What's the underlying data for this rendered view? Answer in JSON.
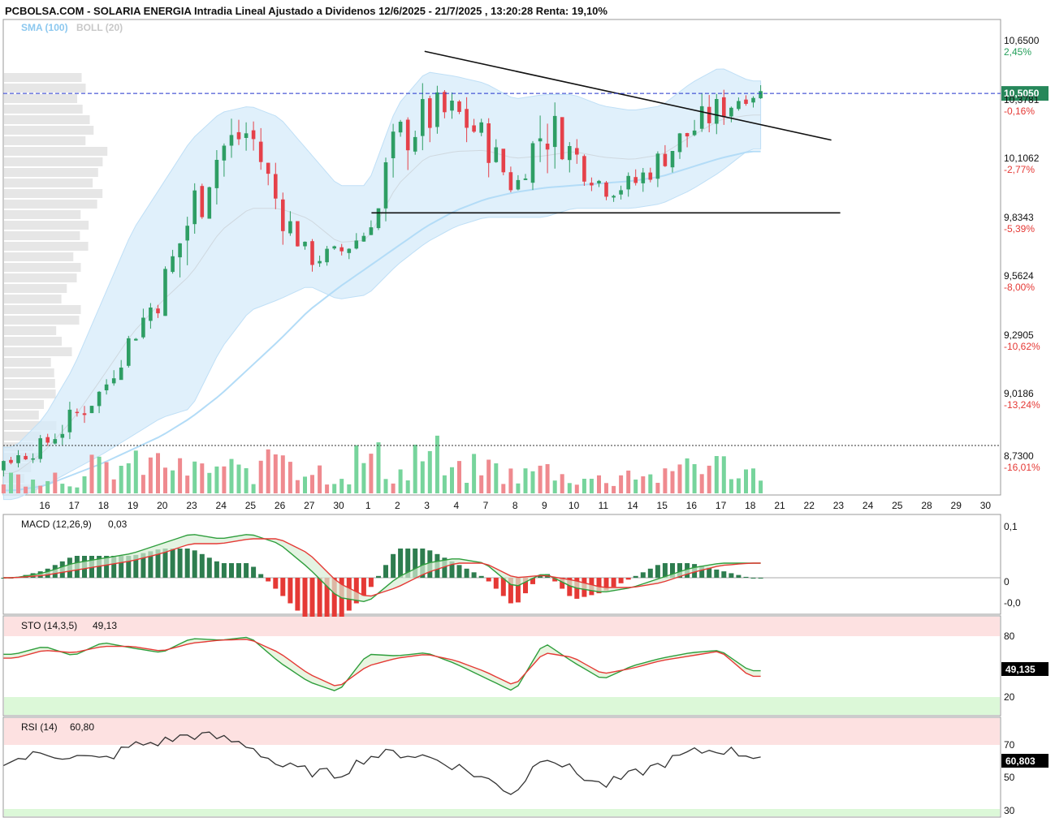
{
  "header": {
    "title": "PCBOLSA.COM - SOLARIA ENERGIA Intradia Lineal Ajustado a Dividenos 12/6/2025 - 21/7/2025 , 13:20:28 Renta: 19,10%",
    "overlay_sma": "SMA (100)",
    "overlay_boll": "BOLL (20)"
  },
  "colors": {
    "up": "#2e9e64",
    "down": "#e5414a",
    "up_volume": "#77d49c",
    "down_volume": "#ef8a8f",
    "boll_fill": "#d6ebfa",
    "sma": "#b3dcf7",
    "last_line": "#2233cc",
    "badge_green": "#26875a",
    "pct_green": "#26a05b",
    "pct_red": "#e53935",
    "macd_line": "#2e9e3c",
    "signal_line": "#e53935",
    "rsi_line": "#333333",
    "overbought_zone": "#fde1e1",
    "oversold_zone": "#dcf8d8",
    "profile_bars": "#e6e6e6"
  },
  "chart_data": [
    {
      "type": "candlestick",
      "title": "PCBOLSA.COM - SOLARIA ENERGIA Intradia Lineal Ajustado a Dividenos 12/6/2025 - 21/7/2025 , 13:20:28 Renta: 19,10%",
      "x_tick_labels": [
        "16",
        "17",
        "18",
        "19",
        "20",
        "23",
        "24",
        "25",
        "26",
        "27",
        "30",
        "1",
        "2",
        "3",
        "4",
        "7",
        "8",
        "9",
        "10",
        "11",
        "14",
        "15",
        "16",
        "17",
        "18",
        "21",
        "22",
        "23",
        "24",
        "25",
        "28",
        "29",
        "30"
      ],
      "price_ticks": [
        {
          "value": "10,6500",
          "pct": "2,45%",
          "trend": "up"
        },
        {
          "value": "10,3781",
          "pct": "-0,16%",
          "trend": "down"
        },
        {
          "value": "10,1062",
          "pct": "-2,77%",
          "trend": "down"
        },
        {
          "value": "9,8343",
          "pct": "-5,39%",
          "trend": "down"
        },
        {
          "value": "9,5624",
          "pct": "-8,00%",
          "trend": "down"
        },
        {
          "value": "9,2905",
          "pct": "-10,62%",
          "trend": "down"
        },
        {
          "value": "9,0186",
          "pct": "-13,24%",
          "trend": "down"
        },
        {
          "value": "8,7300",
          "pct": "-16,01%",
          "trend": "down"
        }
      ],
      "last_price": "10,5050",
      "last_value": 10.505,
      "ylim": [
        8.74,
        10.83
      ],
      "daily_close": [
        8.9,
        8.96,
        9.08,
        9.2,
        9.44,
        9.64,
        9.98,
        10.26,
        10.34,
        10.0,
        9.78,
        9.8,
        9.9,
        10.3,
        10.4,
        10.42,
        10.3,
        10.08,
        10.36,
        10.24,
        10.1,
        10.1,
        10.22,
        10.34,
        10.44,
        10.505
      ],
      "daily_high": [
        8.98,
        9.06,
        9.22,
        9.32,
        9.56,
        9.84,
        10.2,
        10.42,
        10.44,
        10.2,
        9.92,
        9.9,
        10.0,
        10.4,
        10.69,
        10.58,
        10.42,
        10.2,
        10.58,
        10.36,
        10.24,
        10.24,
        10.34,
        10.54,
        10.62,
        10.55
      ],
      "daily_low": [
        8.82,
        8.88,
        8.96,
        9.1,
        9.3,
        9.45,
        9.55,
        9.98,
        10.1,
        9.84,
        9.7,
        9.7,
        9.8,
        9.9,
        10.2,
        10.2,
        10.06,
        9.96,
        10.0,
        10.04,
        9.98,
        10.0,
        10.06,
        10.2,
        10.3,
        10.38
      ],
      "sma100": [
        8.76,
        8.78,
        8.83,
        8.88,
        8.94,
        9.0,
        9.08,
        9.18,
        9.3,
        9.42,
        9.55,
        9.65,
        9.74,
        9.83,
        9.92,
        9.99,
        10.04,
        10.07,
        10.09,
        10.1,
        10.11,
        10.12,
        10.14,
        10.18,
        10.22,
        10.25
      ],
      "boll_upper": [
        8.95,
        9.08,
        9.3,
        9.6,
        9.9,
        10.1,
        10.3,
        10.42,
        10.45,
        10.4,
        10.25,
        10.1,
        10.1,
        10.45,
        10.6,
        10.58,
        10.55,
        10.48,
        10.5,
        10.5,
        10.45,
        10.43,
        10.45,
        10.55,
        10.62,
        10.56
      ],
      "boll_lower": [
        8.72,
        8.78,
        8.85,
        8.92,
        9.0,
        9.08,
        9.12,
        9.38,
        9.55,
        9.6,
        9.66,
        9.6,
        9.62,
        9.75,
        9.85,
        9.92,
        9.96,
        9.96,
        9.96,
        10.0,
        10.0,
        10.0,
        10.02,
        10.08,
        10.16,
        10.26
      ],
      "trendlines": [
        {
          "from": {
            "x": "4",
            "y": 10.69
          },
          "to": {
            "x": "24",
            "y": 10.3
          }
        },
        {
          "from": {
            "x": "2",
            "y": 9.98
          },
          "to": {
            "x": "24",
            "y": 9.98
          }
        }
      ]
    },
    {
      "type": "bar",
      "name": "volume",
      "note_scale": "relative",
      "daily_volume": [
        0.35,
        0.4,
        0.3,
        0.55,
        0.6,
        0.65,
        0.5,
        0.55,
        0.45,
        1.0,
        0.5,
        0.4,
        0.75,
        0.45,
        0.85,
        0.45,
        0.55,
        0.4,
        0.5,
        0.35,
        0.3,
        0.45,
        0.35,
        0.7,
        0.6,
        0.45
      ]
    },
    {
      "type": "line",
      "name": "MACD",
      "label": "MACD (12,26,9)",
      "value": "0,03",
      "ticks": [
        "0,1",
        "0",
        "-0,0"
      ],
      "ylim": [
        -0.07,
        0.125
      ],
      "macd": [
        0.0,
        0.01,
        0.03,
        0.04,
        0.05,
        0.07,
        0.09,
        0.08,
        0.09,
        0.07,
        0.02,
        -0.04,
        -0.05,
        0.0,
        0.03,
        0.04,
        0.03,
        -0.02,
        0.01,
        -0.02,
        -0.03,
        -0.02,
        0.0,
        0.02,
        0.03,
        0.03
      ],
      "signal": [
        0.0,
        0.005,
        0.015,
        0.025,
        0.035,
        0.05,
        0.07,
        0.07,
        0.08,
        0.08,
        0.05,
        -0.01,
        -0.04,
        -0.02,
        0.01,
        0.03,
        0.03,
        0.0,
        0.005,
        -0.005,
        -0.02,
        -0.02,
        -0.01,
        0.01,
        0.025,
        0.03
      ]
    },
    {
      "type": "line",
      "name": "STO",
      "label": "STO (14,3,5)",
      "value": "49,13",
      "last_value": "49,135",
      "ticks": [
        "80",
        "20"
      ],
      "ylim": [
        0,
        100
      ],
      "k": [
        70,
        80,
        68,
        85,
        78,
        72,
        90,
        88,
        92,
        60,
        35,
        22,
        70,
        68,
        72,
        58,
        40,
        22,
        85,
        60,
        38,
        55,
        65,
        72,
        75,
        49
      ],
      "d": [
        65,
        75,
        72,
        80,
        80,
        74,
        84,
        88,
        89,
        72,
        45,
        28,
        55,
        65,
        70,
        62,
        48,
        30,
        72,
        66,
        45,
        52,
        62,
        68,
        74,
        42
      ]
    },
    {
      "type": "line",
      "name": "RSI",
      "label": "RSI (14)",
      "value": "60,80",
      "last_value": "60,803",
      "ticks": [
        "70",
        "50",
        "30"
      ],
      "ylim": [
        28,
        80
      ],
      "rsi": [
        58,
        62,
        60,
        58,
        66,
        68,
        72,
        70,
        66,
        55,
        52,
        50,
        60,
        62,
        60,
        55,
        48,
        40,
        62,
        52,
        44,
        50,
        56,
        62,
        64,
        60.8
      ]
    }
  ]
}
